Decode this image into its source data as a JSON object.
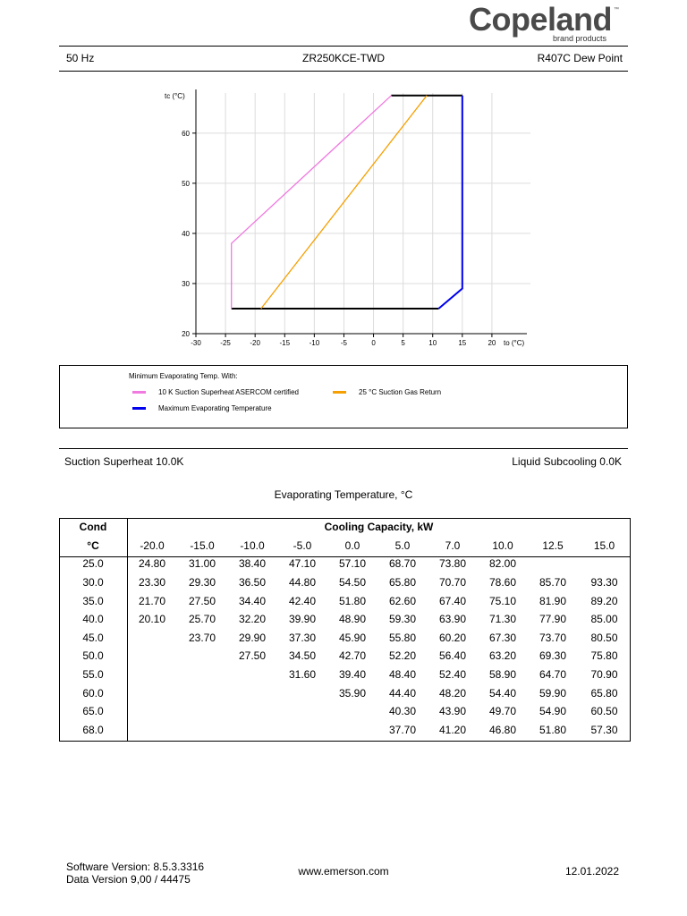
{
  "brand": {
    "name": "Copeland",
    "tm": "™",
    "subtitle": "brand products"
  },
  "header": {
    "frequency": "50 Hz",
    "model": "ZR250KCE-TWD",
    "refrigerant": "R407C Dew Point"
  },
  "chart_data": {
    "type": "line",
    "ylabel": "tc (°C)",
    "xlabel": "to (°C)",
    "xlim": [
      -30,
      25
    ],
    "ylim": [
      20,
      68
    ],
    "x_ticks": [
      -30,
      -25,
      -20,
      -15,
      -10,
      -5,
      0,
      5,
      10,
      15,
      20
    ],
    "y_ticks": [
      20,
      30,
      40,
      50,
      60
    ],
    "grid": true,
    "series": [
      {
        "name": "10 K Suction Superheat ASERCOM certified",
        "color": "#f07ae0",
        "points": [
          [
            -24,
            25
          ],
          [
            -24,
            38
          ],
          [
            3,
            67.5
          ]
        ]
      },
      {
        "name": "25 °C Suction Gas Return",
        "color": "#f5a000",
        "points": [
          [
            -19,
            25
          ],
          [
            9,
            67.5
          ]
        ]
      },
      {
        "name": "Maximum Evaporating Temperature",
        "color": "#0000ee",
        "points": [
          [
            11,
            25
          ],
          [
            15,
            29
          ],
          [
            15,
            67.5
          ]
        ]
      }
    ],
    "boundary": {
      "color": "#000000",
      "segments": [
        [
          [
            -24,
            25
          ],
          [
            11,
            25
          ]
        ],
        [
          [
            3,
            67.5
          ],
          [
            15,
            67.5
          ]
        ]
      ]
    }
  },
  "legend": {
    "title": "Minimum Evaporating Temp. With:",
    "item1": "10 K Suction Superheat ASERCOM certified",
    "item2": "25 °C Suction Gas Return",
    "item3": "Maximum Evaporating Temperature",
    "color1": "#f07ae0",
    "color2": "#f5a000",
    "color3": "#0000ee"
  },
  "conditions": {
    "superheat": "Suction Superheat 10.0K",
    "subcooling": "Liquid Subcooling 0.0K"
  },
  "table": {
    "title": "Evaporating Temperature, °C",
    "cond_label": "Cond",
    "unit_label": "°C",
    "capacity_label": "Cooling Capacity, kW",
    "evap_temps": [
      "-20.0",
      "-15.0",
      "-10.0",
      "-5.0",
      "0.0",
      "5.0",
      "7.0",
      "10.0",
      "12.5",
      "15.0"
    ],
    "rows": [
      {
        "cond": "25.0",
        "values": [
          "24.80",
          "31.00",
          "38.40",
          "47.10",
          "57.10",
          "68.70",
          "73.80",
          "82.00",
          "",
          ""
        ]
      },
      {
        "cond": "30.0",
        "values": [
          "23.30",
          "29.30",
          "36.50",
          "44.80",
          "54.50",
          "65.80",
          "70.70",
          "78.60",
          "85.70",
          "93.30"
        ]
      },
      {
        "cond": "35.0",
        "values": [
          "21.70",
          "27.50",
          "34.40",
          "42.40",
          "51.80",
          "62.60",
          "67.40",
          "75.10",
          "81.90",
          "89.20"
        ]
      },
      {
        "cond": "40.0",
        "values": [
          "20.10",
          "25.70",
          "32.20",
          "39.90",
          "48.90",
          "59.30",
          "63.90",
          "71.30",
          "77.90",
          "85.00"
        ]
      },
      {
        "cond": "45.0",
        "values": [
          "",
          "23.70",
          "29.90",
          "37.30",
          "45.90",
          "55.80",
          "60.20",
          "67.30",
          "73.70",
          "80.50"
        ]
      },
      {
        "cond": "50.0",
        "values": [
          "",
          "",
          "27.50",
          "34.50",
          "42.70",
          "52.20",
          "56.40",
          "63.20",
          "69.30",
          "75.80"
        ]
      },
      {
        "cond": "55.0",
        "values": [
          "",
          "",
          "",
          "31.60",
          "39.40",
          "48.40",
          "52.40",
          "58.90",
          "64.70",
          "70.90"
        ]
      },
      {
        "cond": "60.0",
        "values": [
          "",
          "",
          "",
          "",
          "35.90",
          "44.40",
          "48.20",
          "54.40",
          "59.90",
          "65.80"
        ]
      },
      {
        "cond": "65.0",
        "values": [
          "",
          "",
          "",
          "",
          "",
          "40.30",
          "43.90",
          "49.70",
          "54.90",
          "60.50"
        ]
      },
      {
        "cond": "68.0",
        "values": [
          "",
          "",
          "",
          "",
          "",
          "37.70",
          "41.20",
          "46.80",
          "51.80",
          "57.30"
        ]
      }
    ]
  },
  "footer": {
    "software": "Software Version: 8.5.3.3316",
    "data_version": "Data Version 9,00 / 44475",
    "website": "www.emerson.com",
    "date": "12.01.2022"
  }
}
